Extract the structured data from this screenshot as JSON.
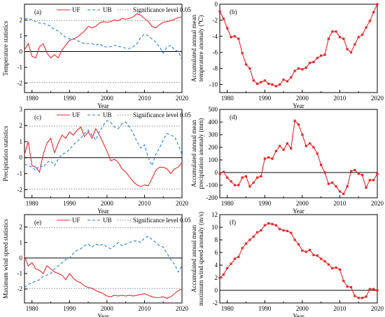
{
  "figure": {
    "background": "#ffffff",
    "colors": {
      "uf": "#e8262a",
      "ub": "#1e7fd6",
      "significance": "#888888",
      "anomaly": "#e8262a",
      "zero": "#000000"
    }
  },
  "chart_data": [
    {
      "id": "a",
      "type": "line",
      "panel_label": "(a)",
      "xlabel": "Year",
      "ylabel": "Temperature statistics",
      "xlim": [
        1978,
        2020
      ],
      "ylim": [
        -2.6,
        3
      ],
      "xticks": [
        1980,
        1990,
        2000,
        2010,
        2020
      ],
      "yticks": [
        -2,
        -1,
        0,
        1,
        2
      ],
      "legend": [
        "UF",
        "UB",
        "Significance level 0.05"
      ],
      "significance": [
        1.96,
        -1.96
      ],
      "zero_line": 0,
      "series": [
        {
          "name": "UF",
          "style": "solid",
          "x": [
            1978,
            1979,
            1980,
            1981,
            1982,
            1983,
            1984,
            1985,
            1986,
            1987,
            1988,
            1989,
            1990,
            1991,
            1992,
            1993,
            1994,
            1995,
            1996,
            1997,
            1998,
            1999,
            2000,
            2001,
            2002,
            2003,
            2004,
            2005,
            2006,
            2007,
            2008,
            2009,
            2010,
            2011,
            2012,
            2013,
            2014,
            2015,
            2016,
            2017,
            2018,
            2019,
            2020
          ],
          "y": [
            0.1,
            0.5,
            -0.3,
            -0.4,
            0.3,
            0.5,
            -0.1,
            -0.4,
            -0.2,
            -0.4,
            0.1,
            0.4,
            0.7,
            0.8,
            0.9,
            1.1,
            1.3,
            1.6,
            1.5,
            1.6,
            1.8,
            1.9,
            1.85,
            1.9,
            2.0,
            1.95,
            2.1,
            2.05,
            2.1,
            2.2,
            2.4,
            2.3,
            2.1,
            1.9,
            1.6,
            1.5,
            1.7,
            1.85,
            1.9,
            1.95,
            2.05,
            2.15,
            2.2
          ]
        },
        {
          "name": "UB",
          "style": "dashed",
          "x": [
            1978,
            1979,
            1980,
            1981,
            1982,
            1983,
            1984,
            1985,
            1986,
            1987,
            1988,
            1989,
            1990,
            1991,
            1992,
            1993,
            1994,
            1995,
            1996,
            1997,
            1998,
            1999,
            2000,
            2001,
            2002,
            2003,
            2004,
            2005,
            2006,
            2007,
            2008,
            2009,
            2010,
            2011,
            2012,
            2013,
            2014,
            2015,
            2016,
            2017,
            2018,
            2019,
            2020
          ],
          "y": [
            2.1,
            2.1,
            2.0,
            1.9,
            1.8,
            1.8,
            1.7,
            1.6,
            1.4,
            1.3,
            1.1,
            0.9,
            0.8,
            0.8,
            0.7,
            0.6,
            0.5,
            0.5,
            0.5,
            0.4,
            0.5,
            0.3,
            0.3,
            0.3,
            0.4,
            0.3,
            0.3,
            0.2,
            0.2,
            0.3,
            0.5,
            0.9,
            1.1,
            1.0,
            0.8,
            0.6,
            0.3,
            -0.1,
            0.3,
            0.4,
            0.1,
            0.0,
            -0.5
          ]
        }
      ]
    },
    {
      "id": "b",
      "type": "line",
      "panel_label": "(b)",
      "xlabel": "Year",
      "ylabel": "Accumulated annual mean temperature anomaly (℃)",
      "xlim": [
        1978,
        2020
      ],
      "ylim": [
        -11,
        0
      ],
      "xticks": [
        1980,
        1990,
        2000,
        2010,
        2020
      ],
      "yticks": [
        0,
        -2,
        -4,
        -6,
        -8,
        -10
      ],
      "zero_line": 0,
      "series": [
        {
          "name": "",
          "style": "solid-square",
          "x": [
            1978,
            1979,
            1980,
            1981,
            1982,
            1983,
            1984,
            1985,
            1986,
            1987,
            1988,
            1989,
            1990,
            1991,
            1992,
            1993,
            1994,
            1995,
            1996,
            1997,
            1998,
            1999,
            2000,
            2001,
            2002,
            2003,
            2004,
            2005,
            2006,
            2007,
            2008,
            2009,
            2010,
            2011,
            2012,
            2013,
            2014,
            2015,
            2016,
            2017,
            2018,
            2019,
            2020
          ],
          "y": [
            -0.9,
            -1.8,
            -3.0,
            -4.1,
            -4.0,
            -4.3,
            -6.1,
            -7.5,
            -8.0,
            -9.5,
            -9.9,
            -9.7,
            -9.5,
            -9.9,
            -10.0,
            -10.2,
            -10.0,
            -9.4,
            -9.6,
            -9.1,
            -8.3,
            -8.0,
            -8.1,
            -7.9,
            -7.3,
            -7.2,
            -6.7,
            -6.4,
            -6.3,
            -4.3,
            -3.4,
            -3.4,
            -4.1,
            -4.3,
            -5.6,
            -6.0,
            -5.0,
            -4.1,
            -3.8,
            -2.9,
            -2.1,
            -1.0,
            0.0
          ]
        }
      ]
    },
    {
      "id": "c",
      "type": "line",
      "panel_label": "(c)",
      "xlabel": "Year",
      "ylabel": "Precipitation statistics",
      "xlim": [
        1978,
        2020
      ],
      "ylim": [
        -2.5,
        3
      ],
      "xticks": [
        1980,
        1990,
        2000,
        2010,
        2020
      ],
      "yticks": [
        -2,
        -1,
        0,
        1,
        2,
        3
      ],
      "legend": [
        "UF",
        "UB",
        "Significance level 0.05"
      ],
      "significance": [
        1.96,
        -1.96
      ],
      "zero_line": 0,
      "series": [
        {
          "name": "UF",
          "style": "solid",
          "x": [
            1978,
            1979,
            1980,
            1981,
            1982,
            1983,
            1984,
            1985,
            1986,
            1987,
            1988,
            1989,
            1990,
            1991,
            1992,
            1993,
            1994,
            1995,
            1996,
            1997,
            1998,
            1999,
            2000,
            2001,
            2002,
            2003,
            2004,
            2005,
            2006,
            2007,
            2008,
            2009,
            2010,
            2011,
            2012,
            2013,
            2014,
            2015,
            2016,
            2017,
            2018,
            2019,
            2020
          ],
          "y": [
            0.2,
            1.0,
            -0.5,
            -0.6,
            -0.9,
            0.2,
            0.9,
            1.2,
            0.3,
            0.9,
            1.4,
            1.2,
            1.6,
            1.4,
            1.7,
            1.9,
            1.3,
            1.6,
            1.2,
            1.8,
            1.4,
            0.9,
            0.4,
            -0.2,
            -0.1,
            -0.3,
            -0.7,
            -0.9,
            -1.2,
            -1.5,
            -1.7,
            -1.8,
            -1.7,
            -1.75,
            -1.3,
            -0.8,
            -0.6,
            -0.6,
            -0.7,
            -1.0,
            -0.7,
            -0.6,
            -0.3
          ]
        },
        {
          "name": "UB",
          "style": "dashed",
          "x": [
            1978,
            1979,
            1980,
            1981,
            1982,
            1983,
            1984,
            1985,
            1986,
            1987,
            1988,
            1989,
            1990,
            1991,
            1992,
            1993,
            1994,
            1995,
            1996,
            1997,
            1998,
            1999,
            2000,
            2001,
            2002,
            2003,
            2004,
            2005,
            2006,
            2007,
            2008,
            2009,
            2010,
            2011,
            2012,
            2013,
            2014,
            2015,
            2016,
            2017,
            2018,
            2019,
            2020
          ],
          "y": [
            -0.4,
            -0.5,
            -0.6,
            -0.8,
            -0.5,
            -0.6,
            -0.3,
            -0.2,
            -0.5,
            -0.1,
            0.2,
            0.3,
            0.5,
            0.8,
            1.0,
            1.2,
            1.5,
            1.7,
            1.4,
            1.1,
            1.6,
            2.0,
            2.3,
            2.2,
            1.9,
            1.8,
            2.1,
            2.2,
            1.9,
            1.5,
            1.0,
            0.6,
            0.8,
            0.0,
            -0.5,
            0.2,
            0.6,
            1.1,
            1.5,
            1.4,
            1.3,
            0.8,
            0.2
          ]
        }
      ]
    },
    {
      "id": "d",
      "type": "line",
      "panel_label": "(d)",
      "xlabel": "Year",
      "ylabel": "Accumulated annual mean precipitation anomaly (mm)",
      "xlim": [
        1978,
        2020
      ],
      "ylim": [
        -200,
        500
      ],
      "xticks": [
        1980,
        1990,
        2000,
        2010,
        2020
      ],
      "yticks": [
        -200,
        -100,
        0,
        100,
        200,
        300,
        400,
        500
      ],
      "zero_line": 0,
      "series": [
        {
          "name": "",
          "style": "solid-square",
          "x": [
            1978,
            1979,
            1980,
            1981,
            1982,
            1983,
            1984,
            1985,
            1986,
            1987,
            1988,
            1989,
            1990,
            1991,
            1992,
            1993,
            1994,
            1995,
            1996,
            1997,
            1998,
            1999,
            2000,
            2001,
            2002,
            2003,
            2004,
            2005,
            2006,
            2007,
            2008,
            2009,
            2010,
            2011,
            2012,
            2013,
            2014,
            2015,
            2016,
            2017,
            2018,
            2019,
            2020
          ],
          "y": [
            -10,
            5,
            -40,
            -70,
            -100,
            -100,
            -40,
            -30,
            -110,
            -80,
            -40,
            -30,
            110,
            120,
            110,
            170,
            210,
            180,
            230,
            190,
            410,
            380,
            300,
            210,
            230,
            200,
            150,
            60,
            0,
            -90,
            -80,
            -110,
            -150,
            -170,
            -110,
            10,
            20,
            -10,
            -20,
            -120,
            -60,
            -60,
            -10
          ]
        }
      ]
    },
    {
      "id": "e",
      "type": "line",
      "panel_label": "(e)",
      "xlabel": "Year",
      "ylabel": "Maximum wind speed statistics",
      "xlim": [
        1978,
        2020
      ],
      "ylim": [
        -2.9,
        2.8
      ],
      "xticks": [
        1980,
        1990,
        2000,
        2010,
        2020
      ],
      "yticks": [
        -2,
        -1,
        0,
        1,
        2
      ],
      "legend": [
        "UF",
        "UB",
        "Significance level 0.05"
      ],
      "significance": [
        1.96,
        -1.96
      ],
      "zero_line": 0,
      "series": [
        {
          "name": "UF",
          "style": "solid",
          "x": [
            1978,
            1979,
            1980,
            1981,
            1982,
            1983,
            1984,
            1985,
            1986,
            1987,
            1988,
            1989,
            1990,
            1991,
            1992,
            1993,
            1994,
            1995,
            1996,
            1997,
            1998,
            1999,
            2000,
            2001,
            2002,
            2003,
            2004,
            2005,
            2006,
            2007,
            2008,
            2009,
            2010,
            2011,
            2012,
            2013,
            2014,
            2015,
            2016,
            2017,
            2018,
            2019,
            2020
          ],
          "y": [
            0.1,
            -0.5,
            -0.3,
            -0.7,
            -0.8,
            -1.0,
            -0.5,
            -0.7,
            -0.9,
            -1.0,
            -1.1,
            -1.4,
            -1.0,
            -1.3,
            -1.5,
            -1.6,
            -1.8,
            -1.9,
            -1.95,
            -2.1,
            -2.2,
            -2.3,
            -2.45,
            -2.5,
            -2.4,
            -2.45,
            -2.4,
            -2.45,
            -2.4,
            -2.45,
            -2.4,
            -2.35,
            -2.3,
            -2.4,
            -2.5,
            -2.55,
            -2.55,
            -2.5,
            -2.6,
            -2.5,
            -2.3,
            -2.1,
            -2.0
          ]
        },
        {
          "name": "UB",
          "style": "dashed",
          "x": [
            1978,
            1979,
            1980,
            1981,
            1982,
            1983,
            1984,
            1985,
            1986,
            1987,
            1988,
            1989,
            1990,
            1991,
            1992,
            1993,
            1994,
            1995,
            1996,
            1997,
            1998,
            1999,
            2000,
            2001,
            2002,
            2003,
            2004,
            2005,
            2006,
            2007,
            2008,
            2009,
            2010,
            2011,
            2012,
            2013,
            2014,
            2015,
            2016,
            2017,
            2018,
            2019,
            2020
          ],
          "y": [
            -1.9,
            -1.7,
            -1.6,
            -1.5,
            -1.4,
            -1.2,
            -1.1,
            -1.0,
            -0.7,
            -0.5,
            -0.3,
            -0.1,
            0.0,
            0.3,
            0.5,
            0.6,
            0.8,
            0.9,
            0.7,
            0.9,
            0.8,
            0.9,
            0.7,
            0.6,
            0.8,
            1.0,
            0.8,
            0.9,
            1.0,
            1.1,
            1.1,
            1.0,
            1.3,
            1.4,
            1.2,
            1.0,
            0.8,
            0.7,
            0.3,
            -0.1,
            -0.4,
            -0.9,
            -0.5
          ]
        }
      ]
    },
    {
      "id": "f",
      "type": "line",
      "panel_label": "(f)",
      "xlabel": "Year",
      "ylabel": "Accumulated annual mean maximum wind speed anomaly (m/s)",
      "xlim": [
        1978,
        2020
      ],
      "ylim": [
        -2,
        12
      ],
      "xticks": [
        1980,
        1990,
        2000,
        2010,
        2020
      ],
      "yticks": [
        -2,
        0,
        2,
        4,
        6,
        8,
        10,
        12
      ],
      "zero_line": 0,
      "series": [
        {
          "name": "",
          "style": "solid-square",
          "x": [
            1978,
            1979,
            1980,
            1981,
            1982,
            1983,
            1984,
            1985,
            1986,
            1987,
            1988,
            1989,
            1990,
            1991,
            1992,
            1993,
            1994,
            1995,
            1996,
            1997,
            1998,
            1999,
            2000,
            2001,
            2002,
            2003,
            2004,
            2005,
            2006,
            2007,
            2008,
            2009,
            2010,
            2011,
            2012,
            2013,
            2014,
            2015,
            2016,
            2017,
            2018,
            2019,
            2020
          ],
          "y": [
            2.0,
            2.5,
            3.5,
            4.2,
            5.0,
            5.3,
            6.7,
            7.4,
            8.0,
            8.5,
            9.2,
            9.5,
            10.3,
            10.6,
            10.5,
            10.3,
            9.7,
            9.5,
            9.4,
            9.1,
            8.0,
            7.3,
            6.3,
            6.1,
            6.4,
            5.6,
            5.5,
            5.0,
            4.6,
            4.1,
            3.5,
            3.6,
            3.3,
            1.5,
            0.6,
            0.5,
            -0.9,
            -1.2,
            -1.2,
            -1.0,
            0.2,
            0.2,
            0.0
          ]
        }
      ]
    }
  ]
}
